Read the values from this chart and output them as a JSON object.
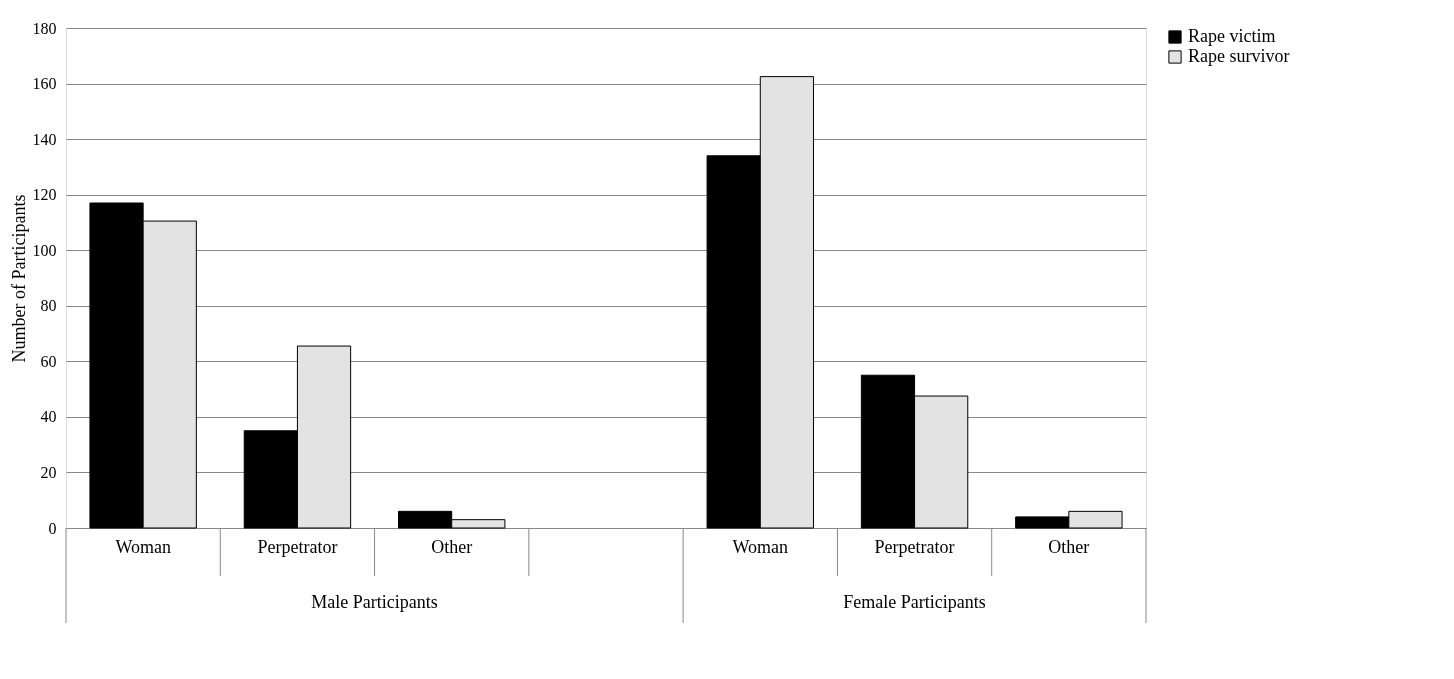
{
  "chart_data": {
    "type": "bar",
    "ylabel": "Number of Participants",
    "categories": [
      "Woman",
      "Perpetrator",
      "Other",
      null,
      "Woman",
      "Perpetrator",
      "Other"
    ],
    "series": [
      {
        "name": "Rape victim",
        "color": "#000000",
        "values": [
          117,
          35,
          6,
          null,
          134,
          55,
          4
        ]
      },
      {
        "name": "Rape survivor",
        "color": "#e3e3e3",
        "values": [
          110.5,
          65.5,
          3,
          null,
          162.5,
          47.5,
          6
        ]
      }
    ],
    "annotations": [
      "Male Participants",
      "Female Participants"
    ],
    "ylim": [
      0,
      180
    ],
    "yticks": [
      0,
      20,
      40,
      60,
      80,
      100,
      120,
      140,
      160,
      180
    ],
    "grid": "y",
    "legend": "right"
  }
}
